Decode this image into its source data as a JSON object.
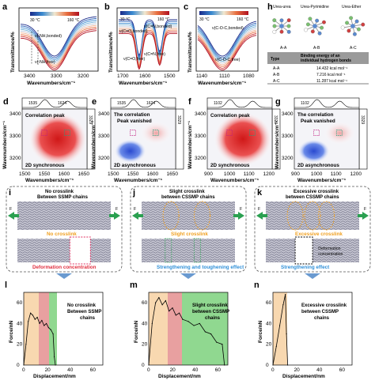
{
  "panel_letters": {
    "a": "a",
    "b": "b",
    "c": "c",
    "d": "d",
    "e": "e",
    "f": "f",
    "g": "g",
    "h": "h",
    "i": "i",
    "j": "j",
    "k": "k",
    "l": "l",
    "m": "m",
    "n": "n"
  },
  "colorbar": {
    "min": "30 °C",
    "max": "160 °C"
  },
  "top_spectra": {
    "ylabel": "Transmittance/%",
    "xlabel": "Wavenumbers/cm⁻¹",
    "a": {
      "ticks": [
        "3400",
        "3300",
        "3200"
      ],
      "ann1": "ν(-NH,bonded)",
      "ann2": "ν(-NH,free)"
    },
    "b": {
      "ticks": [
        "1700",
        "1600",
        "1500"
      ],
      "ann1": "ν(C=O,bonded)",
      "ann2": "ν(C=N,bonded)",
      "ann3": "ν(C=O,free)",
      "ann4": "ν(C=N,free)"
    },
    "c": {
      "ticks": [
        "1140",
        "1110",
        "1080"
      ],
      "ann1": "ν(C-O-C,bonded)",
      "ann2": "ν(C-O-C,free)"
    }
  },
  "h": {
    "mol1": "Urea-urea",
    "mol2": "Urea-Pyrimidine",
    "mol3": "Urea-Ether",
    "mol1_sub": "A-A",
    "mol2_sub": "A-B",
    "mol3_sub": "A-C",
    "th_type": "Type",
    "th_energy": "Binding energy of an individual hydrogen bonds",
    "rows": [
      {
        "type": "A-A",
        "energy": "14.432 kcal mol⁻¹"
      },
      {
        "type": "A-B",
        "energy": "7.216 kcal mol⁻¹"
      },
      {
        "type": "A-C",
        "energy": "11.287 kcal mol⁻¹"
      }
    ]
  },
  "maps": {
    "ylabel": "Wavenumbers/cm⁻¹",
    "xlabel": "Wavenumbers/cm⁻¹",
    "yticks": [
      "3400",
      "3300",
      "3200"
    ],
    "d": {
      "top1": "1535",
      "top2": "1624",
      "side": "3329",
      "title": "Correlation peak",
      "foot": "2D synchronous",
      "xticks": [
        "1500",
        "1550",
        "1600",
        "1650"
      ]
    },
    "e": {
      "top1": "1535",
      "top2": "1624",
      "side": "3329",
      "title": "The correlation\nPeak vanished",
      "t1": "The correlation",
      "t2": "Peak vanished",
      "foot": "2D asynchronous",
      "xticks": [
        "1500",
        "1550",
        "1600",
        "1650"
      ]
    },
    "f": {
      "top1": "1102",
      "side": "3329",
      "title": "Correlation peak",
      "foot": "2D synchronous",
      "xticks": [
        "900",
        "1000",
        "1100",
        "1200"
      ]
    },
    "g": {
      "top1": "1102",
      "side": "3329",
      "t1": "The correlation",
      "t2": "Peak vanished",
      "foot": "2D asynchronous",
      "xticks": [
        "900",
        "1000",
        "1100",
        "1200"
      ]
    }
  },
  "sim": {
    "i": {
      "t1": "No crosslink",
      "t2": "Between SSMP chains",
      "mid": "No crosslink",
      "bot": "Deformation concentration"
    },
    "j": {
      "t1": "Slight crosslink",
      "t2": "between CSSMP chains",
      "mid": "Slight crosslink",
      "bot": "Strengthening and toughening effect"
    },
    "k": {
      "t1": "Excessive crosslink",
      "t2": "between CSSMP chains",
      "mid": "Excessive crosslink",
      "bot": "Strengthening effect",
      "ann1": "Deformation",
      "ann2": "concentration"
    },
    "force": "F"
  },
  "force_curves": {
    "ylabel": "Force/nN",
    "xlabel": "Displacement/nm",
    "l": {
      "t1": "No crosslink",
      "t2": "Between SSMP",
      "t3": "chains"
    },
    "m": {
      "t1": "Slight crosslink",
      "t2": "between CSSMP",
      "t3": "chains"
    },
    "n": {
      "t1": "Excessive crosslink",
      "t2": "between CSSMP",
      "t3": "chains"
    },
    "yticks": [
      "0",
      "20",
      "40",
      "60"
    ],
    "xticks": [
      "0",
      "20",
      "40",
      "60"
    ]
  },
  "chart_data": [
    {
      "type": "line",
      "panel": "l",
      "xlabel": "Displacement/nm",
      "ylabel": "Force/nN",
      "xlim": [
        0,
        70
      ],
      "ylim": [
        0,
        70
      ],
      "x": [
        0,
        2,
        4,
        6,
        8,
        10,
        12,
        14,
        16,
        18,
        20,
        22,
        24,
        26,
        27,
        28
      ],
      "values": [
        0,
        20,
        42,
        50,
        48,
        44,
        46,
        40,
        43,
        38,
        40,
        36,
        34,
        30,
        8,
        0
      ]
    },
    {
      "type": "line",
      "panel": "m",
      "xlabel": "Displacement/nm",
      "ylabel": "Force/nN",
      "xlim": [
        0,
        70
      ],
      "ylim": [
        0,
        70
      ],
      "x": [
        0,
        3,
        6,
        9,
        12,
        15,
        18,
        21,
        24,
        27,
        30,
        35,
        40,
        45,
        50,
        55,
        60,
        65,
        67
      ],
      "values": [
        0,
        40,
        60,
        65,
        58,
        62,
        52,
        55,
        48,
        50,
        44,
        42,
        38,
        40,
        32,
        30,
        22,
        20,
        0
      ]
    },
    {
      "type": "line",
      "panel": "n",
      "xlabel": "Displacement/nm",
      "ylabel": "Force/nN",
      "xlim": [
        0,
        70
      ],
      "ylim": [
        0,
        70
      ],
      "x": [
        0,
        3,
        6,
        9,
        11,
        12,
        13
      ],
      "values": [
        0,
        18,
        38,
        58,
        68,
        30,
        0
      ]
    }
  ]
}
